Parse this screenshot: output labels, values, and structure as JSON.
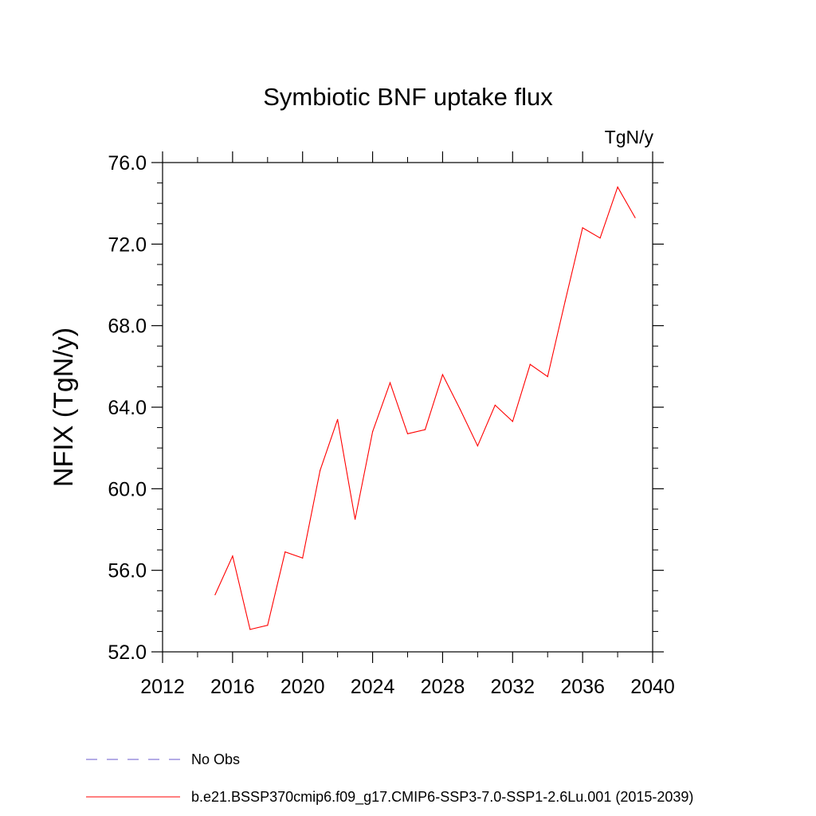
{
  "chart_data": {
    "type": "line",
    "title": "Symbiotic BNF uptake flux",
    "units": "TgN/y",
    "xlabel": "",
    "ylabel": "NFIX  (TgN/y)",
    "xlim": [
      2012,
      2040
    ],
    "ylim": [
      52.0,
      76.0
    ],
    "xticks": [
      2012,
      2016,
      2020,
      2024,
      2028,
      2032,
      2036,
      2040
    ],
    "xtick_labels": [
      "2012",
      "2016",
      "2020",
      "2024",
      "2028",
      "2032",
      "2036",
      "2040"
    ],
    "yticks": [
      52.0,
      56.0,
      60.0,
      64.0,
      68.0,
      72.0,
      76.0
    ],
    "ytick_labels": [
      "52.0",
      "56.0",
      "60.0",
      "64.0",
      "68.0",
      "72.0",
      "76.0"
    ],
    "grid": false,
    "legend_position": "bottom",
    "series": [
      {
        "name": "No Obs",
        "color": "#6a5acd",
        "dash": "dashed",
        "x": [],
        "y": []
      },
      {
        "name": "b.e21.BSSP370cmip6.f09_g17.CMIP6-SSP3-7.0-SSP1-2.6Lu.001 (2015-2039)",
        "color": "#ff0000",
        "dash": "solid",
        "x": [
          2015,
          2016,
          2017,
          2018,
          2019,
          2020,
          2021,
          2022,
          2023,
          2024,
          2025,
          2026,
          2027,
          2028,
          2029,
          2030,
          2031,
          2032,
          2033,
          2034,
          2035,
          2036,
          2037,
          2038,
          2039
        ],
        "y": [
          54.8,
          56.7,
          53.1,
          53.3,
          56.9,
          56.6,
          60.9,
          63.4,
          58.5,
          62.8,
          65.2,
          62.7,
          62.9,
          65.6,
          63.9,
          62.1,
          64.1,
          63.3,
          66.1,
          65.5,
          69.2,
          72.8,
          72.3,
          74.8,
          73.3
        ]
      }
    ]
  }
}
